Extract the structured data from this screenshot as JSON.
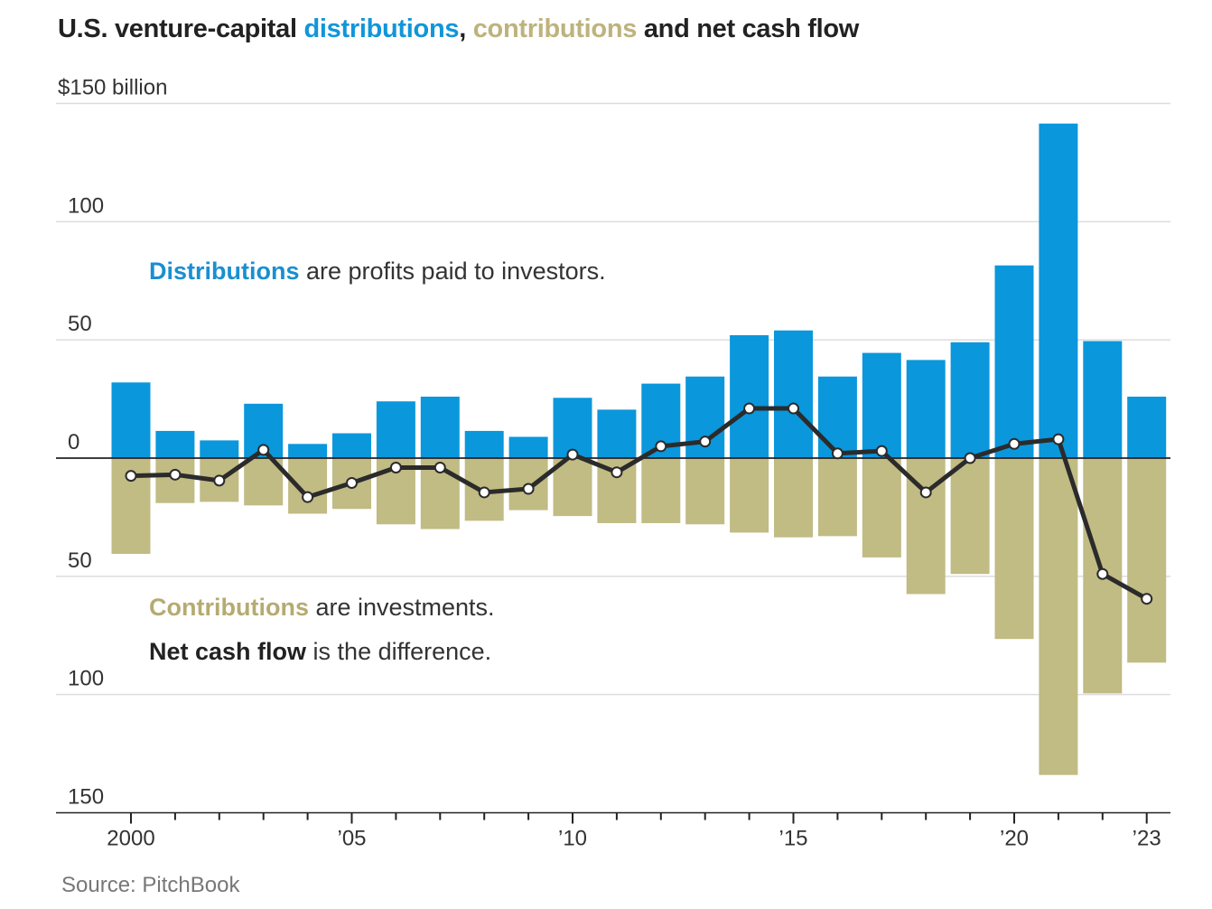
{
  "title": {
    "part1": "U.S. venture-capital ",
    "part2": "distributions",
    "part3": ", ",
    "part4": "contributions",
    "part5": " and net cash flow"
  },
  "annotations": {
    "distributions_key": "Distributions",
    "distributions_text": " are profits paid to investors.",
    "contributions_key": "Contributions",
    "contributions_text": " are investments.",
    "net_key": "Net cash flow",
    "net_text": " is the difference."
  },
  "source": "Source: PitchBook",
  "colors": {
    "distributions": "#0a97dc",
    "contributions": "#c1bb84",
    "net_line": "#2b2b2b",
    "gridline": "#dddddd",
    "axis": "#222222"
  },
  "chart_data": {
    "type": "bar",
    "x": [
      2000,
      2001,
      2002,
      2003,
      2004,
      2005,
      2006,
      2007,
      2008,
      2009,
      2010,
      2011,
      2012,
      2013,
      2014,
      2015,
      2016,
      2017,
      2018,
      2019,
      2020,
      2021,
      2022,
      2023
    ],
    "series": [
      {
        "name": "distributions",
        "type": "bar",
        "values": [
          32,
          11.5,
          7.5,
          23,
          6,
          10.5,
          24,
          26,
          11.5,
          9,
          25.5,
          20.5,
          31.5,
          34.5,
          52,
          54,
          34.5,
          44.5,
          41.5,
          49,
          81.5,
          141.5,
          49.5,
          26
        ]
      },
      {
        "name": "contributions",
        "type": "bar",
        "values": [
          -40.5,
          -19,
          -18.5,
          -20,
          -23.5,
          -21.5,
          -28,
          -30,
          -26.5,
          -22,
          -24.5,
          -27.5,
          -27.5,
          -28,
          -31.5,
          -33.5,
          -33,
          -42,
          -57.5,
          -49,
          -76.5,
          -134,
          -99.5,
          -86.5
        ]
      },
      {
        "name": "net cash flow",
        "type": "line",
        "values": [
          -7.5,
          -7,
          -9.5,
          3.5,
          -16.5,
          -10.5,
          -4,
          -4,
          -14.5,
          -13,
          1.5,
          -6,
          5,
          7,
          21,
          21,
          2,
          3,
          -14.5,
          0,
          6,
          8,
          -49,
          -59.5
        ]
      }
    ],
    "y_ticks": [
      {
        "value": 150,
        "label": "$150 billion"
      },
      {
        "value": 100,
        "label": "100"
      },
      {
        "value": 50,
        "label": "50"
      },
      {
        "value": 0,
        "label": "0"
      },
      {
        "value": -50,
        "label": "50"
      },
      {
        "value": -100,
        "label": "100"
      },
      {
        "value": -150,
        "label": "150"
      }
    ],
    "x_tick_labels": [
      {
        "year": 2000,
        "label": "2000"
      },
      {
        "year": 2005,
        "label": "’05"
      },
      {
        "year": 2010,
        "label": "’10"
      },
      {
        "year": 2015,
        "label": "’15"
      },
      {
        "year": 2020,
        "label": "’20"
      },
      {
        "year": 2023,
        "label": "’23"
      }
    ],
    "ylim": [
      -150,
      150
    ],
    "grid": true,
    "xlabel": "",
    "ylabel": ""
  }
}
